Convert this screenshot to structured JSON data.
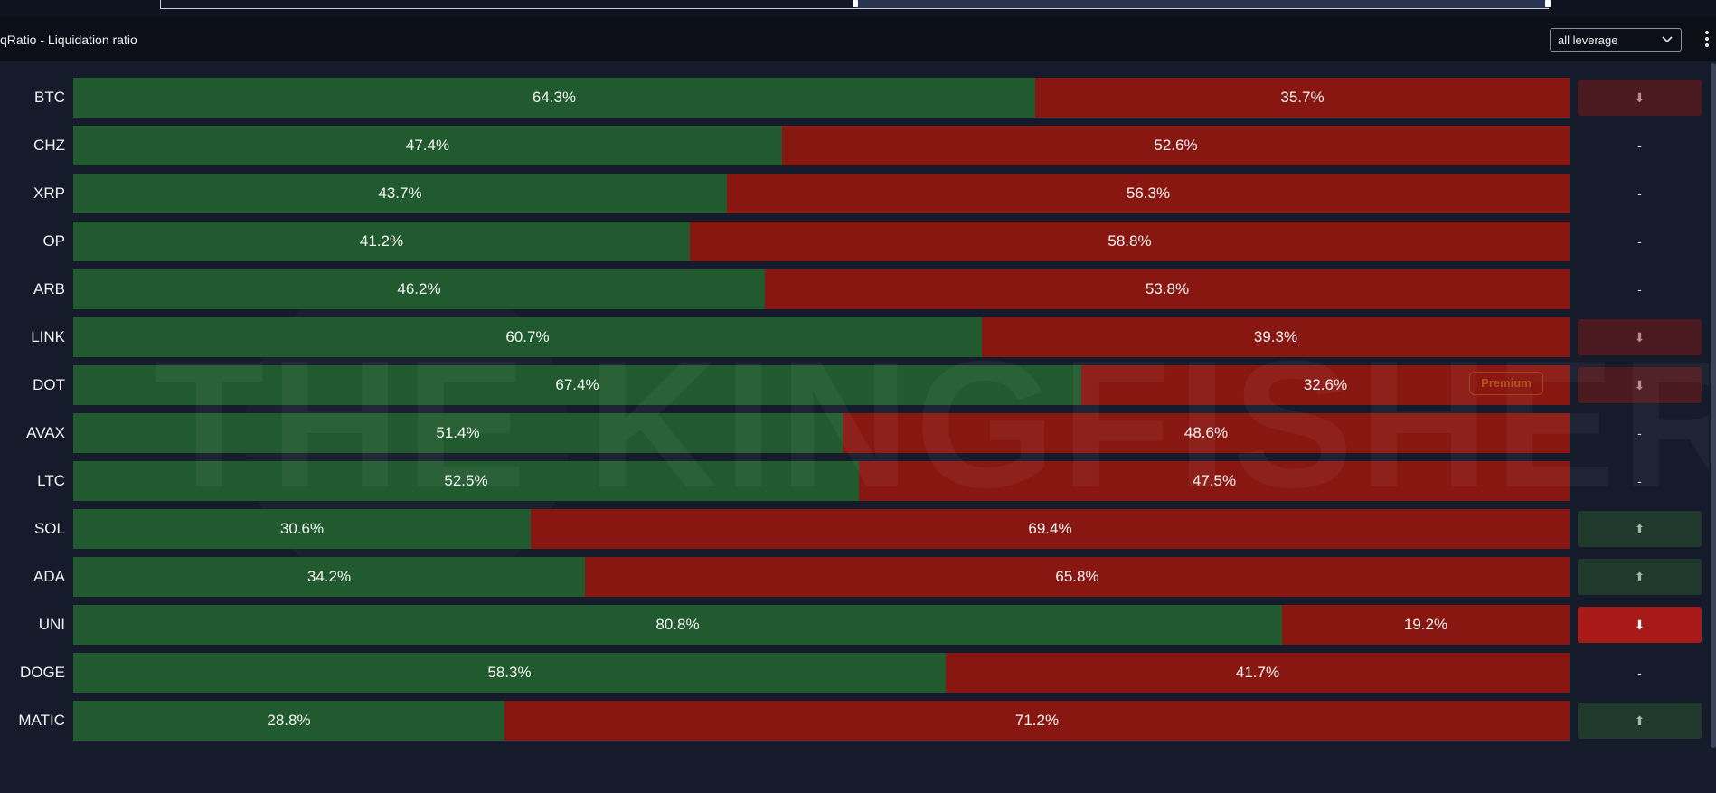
{
  "header": {
    "title": "qRatio - Liquidation ratio",
    "leverage_select": "all leverage"
  },
  "watermark": "THE KINGFISHER.io",
  "premium_badge": "Premium",
  "colors": {
    "long": "#215a2e",
    "short": "#891711",
    "signal_down": "#a71a17",
    "signal_down_dim": "#4a1a20",
    "signal_up": "#1f3a2c"
  },
  "chart_data": {
    "type": "bar",
    "orientation": "horizontal-stacked-100",
    "categories": [
      "BTC",
      "CHZ",
      "XRP",
      "OP",
      "ARB",
      "LINK",
      "DOT",
      "AVAX",
      "LTC",
      "SOL",
      "ADA",
      "UNI",
      "DOGE",
      "MATIC"
    ],
    "series": [
      {
        "values": [
          64.3,
          47.4,
          43.7,
          41.2,
          46.2,
          60.7,
          67.4,
          51.4,
          52.5,
          30.6,
          34.2,
          80.8,
          58.3,
          28.8
        ]
      },
      {
        "values": [
          35.7,
          52.6,
          56.3,
          58.8,
          53.8,
          39.3,
          32.6,
          48.6,
          47.5,
          69.4,
          65.8,
          19.2,
          41.7,
          71.2
        ]
      }
    ],
    "labels_long": [
      "64.3%",
      "47.4%",
      "43.7%",
      "41.2%",
      "46.2%",
      "60.7%",
      "67.4%",
      "51.4%",
      "52.5%",
      "30.6%",
      "34.2%",
      "80.8%",
      "58.3%",
      "28.8%"
    ],
    "labels_short": [
      "35.7%",
      "52.6%",
      "56.3%",
      "58.8%",
      "53.8%",
      "39.3%",
      "32.6%",
      "48.6%",
      "47.5%",
      "69.4%",
      "65.8%",
      "19.2%",
      "41.7%",
      "71.2%"
    ],
    "signals": [
      "down-dim",
      "-",
      "-",
      "-",
      "-",
      "down-dim",
      "down-dim",
      "-",
      "-",
      "up",
      "up",
      "down",
      "-",
      "up"
    ],
    "signal_glyphs": {
      "up": "⬆",
      "down": "⬇",
      "down-dim": "⬇",
      "-": "-"
    },
    "ylim": [
      0,
      100
    ]
  }
}
